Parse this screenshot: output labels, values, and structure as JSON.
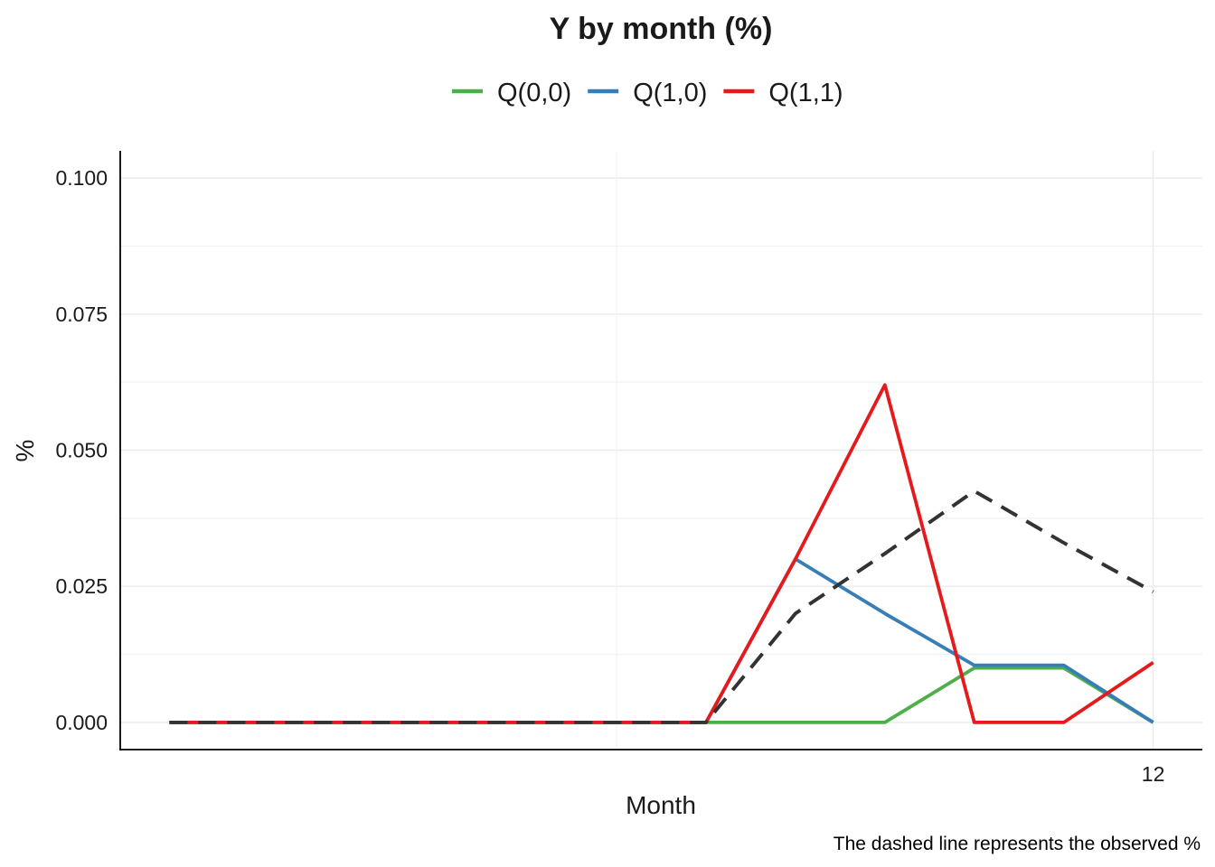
{
  "chart_data": {
    "type": "line",
    "title": "Y by month (%)",
    "xlabel": "Month",
    "ylabel": "%",
    "caption": "The dashed line represents the observed %",
    "legend_position": "top",
    "grid": true,
    "xlim": [
      0.45,
      12.55
    ],
    "ylim": [
      -0.005,
      0.105
    ],
    "x_ticks": [
      12
    ],
    "x_tick_labels": [
      "12"
    ],
    "x_minor_ticks": [
      6
    ],
    "y_ticks": [
      0,
      0.025,
      0.05,
      0.075,
      0.1
    ],
    "y_tick_labels": [
      "0.000",
      "0.025",
      "0.050",
      "0.075",
      "0.100"
    ],
    "x": [
      1,
      2,
      3,
      4,
      5,
      6,
      7,
      8,
      9,
      10,
      11,
      12
    ],
    "series": [
      {
        "name": "Q(0,0)",
        "color": "#4DAF4A",
        "style": "solid",
        "values": [
          0,
          0,
          0,
          0,
          0,
          0,
          0,
          0,
          0,
          0.01,
          0.01,
          0
        ]
      },
      {
        "name": "Q(1,0)",
        "color": "#377EB8",
        "style": "solid",
        "values": [
          0,
          0,
          0,
          0,
          0,
          0,
          0,
          0.03,
          0.02,
          0.0105,
          0.0105,
          0
        ]
      },
      {
        "name": "Q(1,1)",
        "color": "#E41A1C",
        "style": "solid",
        "values": [
          0,
          0,
          0,
          0,
          0,
          0,
          0,
          0.03,
          0.062,
          0,
          0,
          0.011
        ]
      },
      {
        "color": "#333333",
        "style": "dashed",
        "values": [
          0,
          0,
          0,
          0,
          0,
          0,
          0,
          0.02,
          0.031,
          0.0425,
          0.033,
          0.024
        ]
      }
    ]
  }
}
